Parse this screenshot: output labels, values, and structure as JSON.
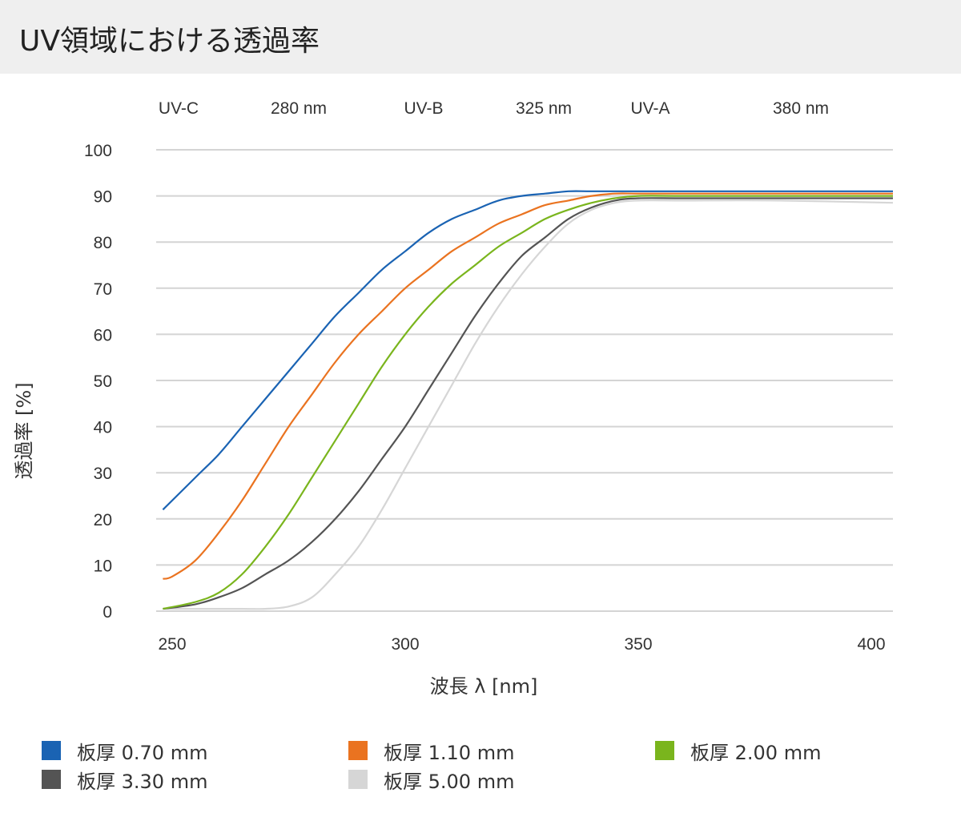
{
  "title": "UV領域における透過率",
  "chart_data": {
    "type": "line",
    "title": "UV領域における透過率",
    "xlabel": "波長 λ [nm]",
    "ylabel": "透過率 [%]",
    "xlim": [
      248,
      405
    ],
    "ylim": [
      0,
      100
    ],
    "xticks": [
      250,
      300,
      350,
      400
    ],
    "yticks": [
      0,
      10,
      20,
      30,
      40,
      50,
      60,
      70,
      80,
      90,
      100
    ],
    "grid": true,
    "legend_position": "bottom",
    "top_labels": [
      "UV-C",
      "280 nm",
      "UV-B",
      "325 nm",
      "UV-A",
      "380 nm"
    ],
    "series": [
      {
        "name": "板厚 0.70 mm",
        "color": "#1a63b3",
        "x": [
          248,
          255,
          260,
          265,
          270,
          275,
          280,
          285,
          290,
          295,
          300,
          305,
          310,
          315,
          320,
          325,
          330,
          335,
          340,
          350,
          360,
          380,
          405
        ],
        "y": [
          22,
          29,
          34,
          40,
          46,
          52,
          58,
          64,
          69,
          74,
          78,
          82,
          85,
          87,
          89,
          90,
          90.5,
          91,
          91,
          91,
          91,
          91,
          91
        ]
      },
      {
        "name": "板厚 1.10 mm",
        "color": "#ea7320",
        "x": [
          248,
          250,
          255,
          260,
          265,
          270,
          275,
          280,
          285,
          290,
          295,
          300,
          305,
          310,
          315,
          320,
          325,
          330,
          335,
          340,
          345,
          350,
          360,
          380,
          405
        ],
        "y": [
          7,
          7.5,
          11,
          17,
          24,
          32,
          40,
          47,
          54,
          60,
          65,
          70,
          74,
          78,
          81,
          84,
          86,
          88,
          89,
          90,
          90.5,
          90.5,
          90.5,
          90.5,
          90.5
        ]
      },
      {
        "name": "板厚 2.00 mm",
        "color": "#7ab51d",
        "x": [
          248,
          255,
          260,
          265,
          270,
          275,
          280,
          285,
          290,
          295,
          300,
          305,
          310,
          315,
          320,
          325,
          330,
          335,
          340,
          345,
          350,
          360,
          380,
          405
        ],
        "y": [
          0.5,
          2,
          4,
          8,
          14,
          21,
          29,
          37,
          45,
          53,
          60,
          66,
          71,
          75,
          79,
          82,
          85,
          87,
          88.5,
          89.5,
          90,
          90,
          90,
          90
        ]
      },
      {
        "name": "板厚 3.30 mm",
        "color": "#545454",
        "x": [
          248,
          255,
          260,
          265,
          270,
          275,
          280,
          285,
          290,
          295,
          300,
          305,
          310,
          315,
          320,
          325,
          330,
          335,
          340,
          345,
          350,
          360,
          380,
          405
        ],
        "y": [
          0.5,
          1.5,
          3,
          5,
          8,
          11,
          15,
          20,
          26,
          33,
          40,
          48,
          56,
          64,
          71,
          77,
          81,
          85,
          87.5,
          89,
          89.5,
          89.5,
          89.5,
          89.5
        ]
      },
      {
        "name": "板厚 5.00 mm",
        "color": "#d6d6d6",
        "x": [
          248,
          255,
          265,
          270,
          275,
          280,
          285,
          290,
          295,
          300,
          305,
          310,
          315,
          320,
          325,
          330,
          335,
          340,
          345,
          350,
          360,
          380,
          405
        ],
        "y": [
          0.5,
          0.5,
          0.5,
          0.5,
          1,
          3,
          8,
          14,
          22,
          31,
          40,
          49,
          58,
          66,
          73,
          79,
          84,
          87,
          88.5,
          89,
          89,
          89,
          88.5
        ]
      }
    ]
  }
}
